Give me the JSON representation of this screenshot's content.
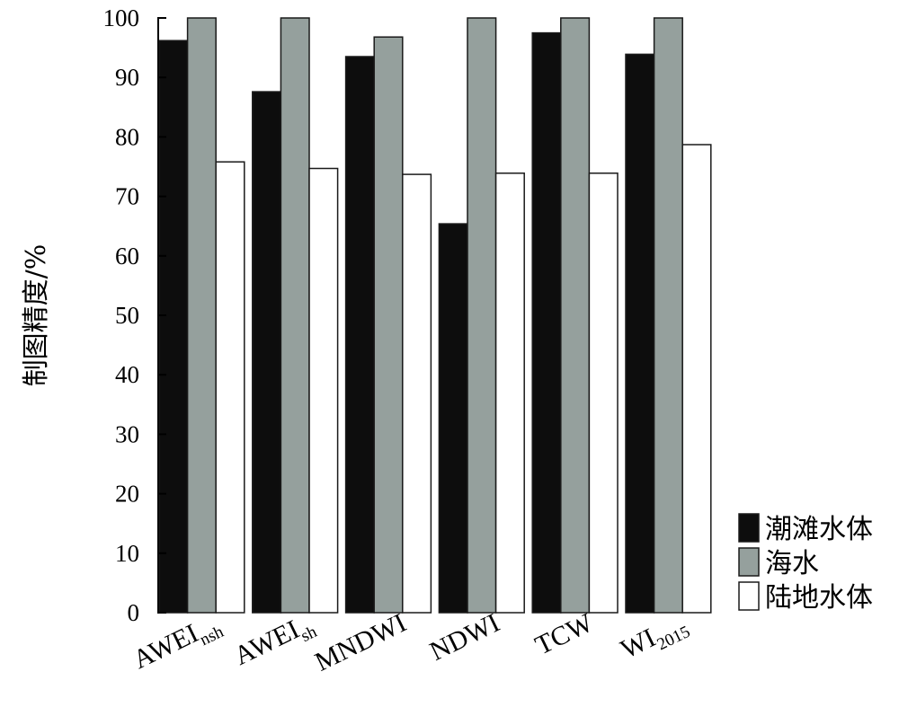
{
  "chart_data": {
    "type": "bar",
    "ylabel": "制图精度/%",
    "xlabel": "",
    "ylim": [
      0,
      100
    ],
    "yticks": [
      0,
      10,
      20,
      30,
      40,
      50,
      60,
      70,
      80,
      90,
      100
    ],
    "grid": false,
    "legend_position": "bottom-right",
    "categories": [
      {
        "main": "AWEI",
        "sub": "nsh"
      },
      {
        "main": "AWEI",
        "sub": "sh"
      },
      {
        "main": "MNDWI",
        "sub": ""
      },
      {
        "main": "NDWI",
        "sub": ""
      },
      {
        "main": "TCW",
        "sub": ""
      },
      {
        "main": "WI",
        "sub": "2015"
      }
    ],
    "series": [
      {
        "name": "潮滩水体",
        "color": "#0d0d0d",
        "values": [
          96.2,
          87.6,
          93.5,
          65.4,
          97.5,
          93.9
        ]
      },
      {
        "name": "海水",
        "color": "#95a09d",
        "values": [
          100,
          100,
          96.8,
          100,
          100,
          100
        ]
      },
      {
        "name": "陆地水体",
        "color": "#ffffff",
        "values": [
          75.8,
          74.7,
          73.7,
          73.9,
          73.9,
          78.7
        ]
      }
    ]
  }
}
